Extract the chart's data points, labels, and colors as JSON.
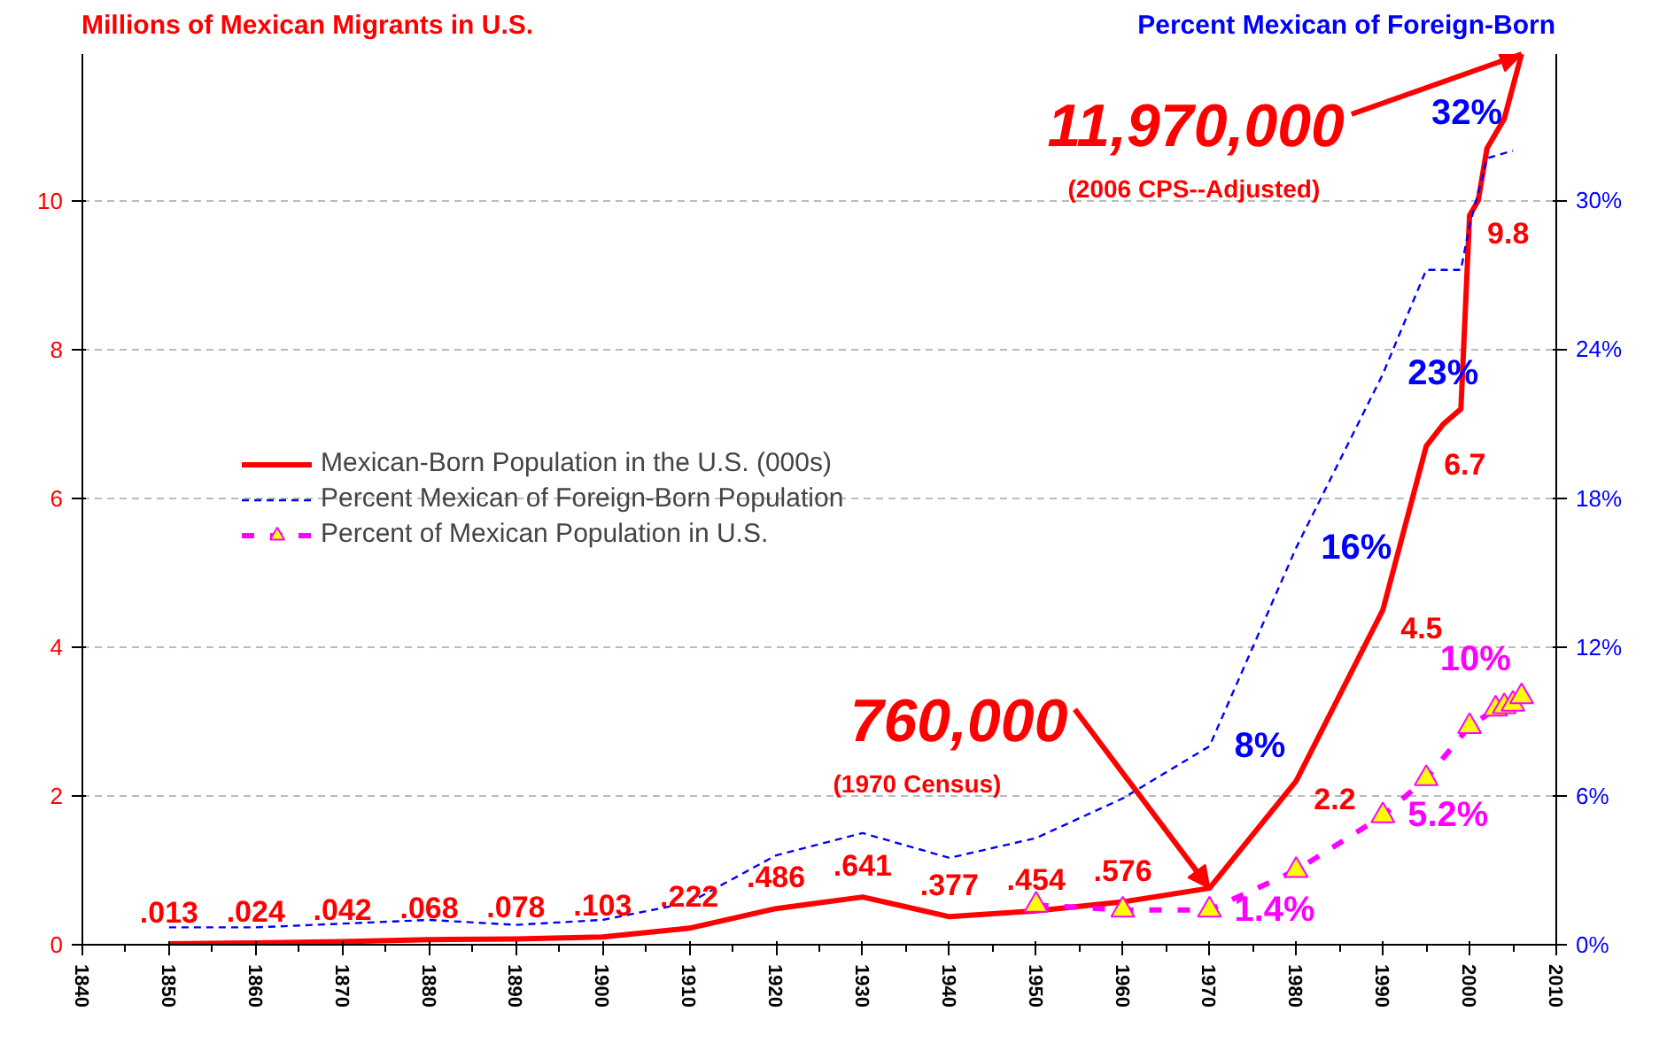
{
  "chart_data": {
    "type": "line",
    "ylabel": "Millions of Mexican Migrants in U.S.",
    "y2label": "Percent Mexican of Foreign-Born",
    "xlim": [
      1840,
      2010
    ],
    "xticks": [
      1840,
      1850,
      1860,
      1870,
      1880,
      1890,
      1900,
      1910,
      1920,
      1930,
      1940,
      1950,
      1960,
      1970,
      1980,
      1990,
      2000,
      2010
    ],
    "ylim": [
      0,
      11.97
    ],
    "yticks": [
      0,
      2,
      4,
      6,
      8,
      10
    ],
    "y2lim": [
      0,
      35.9
    ],
    "y2ticks": [
      {
        "value": 0,
        "label": "0%"
      },
      {
        "value": 6,
        "label": "6%"
      },
      {
        "value": 12,
        "label": "12%"
      },
      {
        "value": 18,
        "label": "18%"
      },
      {
        "value": 24,
        "label": "24%"
      },
      {
        "value": 30,
        "label": "30%"
      }
    ],
    "grid": "y",
    "legend": "left",
    "series": [
      {
        "name": "Mexican-Born Population in the U.S. (000s)",
        "color": "#ff0000",
        "line_style": "solid",
        "marker": "none",
        "x": [
          1850,
          1860,
          1870,
          1880,
          1890,
          1900,
          1910,
          1920,
          1930,
          1940,
          1950,
          1960,
          1970,
          1980,
          1990,
          1995,
          1997,
          1999,
          2000,
          2001,
          2002,
          2004,
          2006
        ],
        "values": [
          0.013,
          0.024,
          0.042,
          0.068,
          0.078,
          0.103,
          0.222,
          0.486,
          0.641,
          0.377,
          0.454,
          0.576,
          0.76,
          2.2,
          4.5,
          6.7,
          7.0,
          7.2,
          9.8,
          10.0,
          10.7,
          11.1,
          11.97
        ],
        "value_labels": [
          ".013",
          ".024",
          ".042",
          ".068",
          ".078",
          ".103",
          ".222",
          ".486",
          ".641",
          ".377",
          ".454",
          ".576",
          null,
          "2.2",
          "4.5",
          "6.7",
          null,
          null,
          "9.8",
          null,
          null,
          null,
          null
        ]
      },
      {
        "name": "Percent Mexican of Foreign-Born Population",
        "color": "#0000ff",
        "line_style": "dashed",
        "marker": "none",
        "axis": "y2",
        "x": [
          1850,
          1860,
          1870,
          1880,
          1890,
          1900,
          1910,
          1920,
          1930,
          1940,
          1950,
          1960,
          1970,
          1980,
          1990,
          1995,
          1999,
          2000,
          2001,
          2002,
          2005
        ],
        "values": [
          0.7,
          0.7,
          0.85,
          1.0,
          0.8,
          1.0,
          1.7,
          3.6,
          4.5,
          3.5,
          4.3,
          5.9,
          8.0,
          16.0,
          23.0,
          27.2,
          27.2,
          29.0,
          30.3,
          31.7,
          32.0
        ],
        "value_labels": [
          null,
          null,
          null,
          null,
          null,
          null,
          null,
          null,
          null,
          null,
          null,
          null,
          "8%",
          "16%",
          "23%",
          null,
          null,
          null,
          null,
          null,
          "32%"
        ]
      },
      {
        "name": "Percent of Mexican Population in U.S.",
        "color": "#ff00ff",
        "line_style": "dashed",
        "marker": "triangle",
        "axis": "y2",
        "x": [
          1950,
          1960,
          1970,
          1980,
          1990,
          1995,
          2000,
          2003,
          2004,
          2005,
          2006
        ],
        "values": [
          1.6,
          1.4,
          1.4,
          3.0,
          5.2,
          6.7,
          8.8,
          9.5,
          9.6,
          9.7,
          10.0
        ],
        "value_labels": [
          null,
          null,
          "1.4%",
          null,
          "5.2%",
          null,
          null,
          null,
          null,
          null,
          "10%"
        ]
      }
    ],
    "annotations": [
      {
        "text": "11,970,000",
        "x": 2006,
        "y": 11.97
      },
      "(2006 CPS--Adjusted)",
      {
        "text": "760,000",
        "x": 1970,
        "y": 0.76
      },
      "(1970 Census)"
    ]
  }
}
